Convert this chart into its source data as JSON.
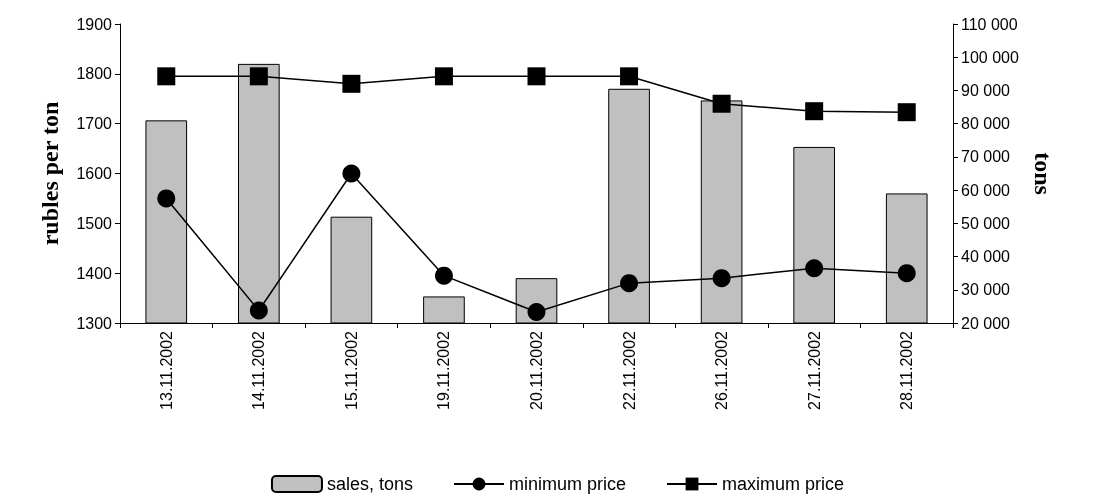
{
  "chart_data": {
    "type": "bar",
    "ylabel": "rubles per ton",
    "y2label": "tons",
    "categories": [
      "13.11.2002",
      "14.11.2002",
      "15.11.2002",
      "19.11.2002",
      "20.11.2002",
      "22.11.2002",
      "26.11.2002",
      "27.11.2002",
      "28.11.2002"
    ],
    "series": [
      {
        "name": "sales, tons",
        "axis": "y2",
        "color": "#c0c0c0",
        "values": [
          81000,
          98000,
          52000,
          28000,
          33500,
          90500,
          87000,
          73000,
          59000
        ]
      },
      {
        "name": "minimum price",
        "type": "line",
        "axis": "y",
        "color": "#000000",
        "marker": "circle",
        "values": [
          1550,
          1325,
          1600,
          1395,
          1322,
          1380,
          1390,
          1410,
          1400
        ]
      },
      {
        "name": "maximum price",
        "type": "line",
        "axis": "y",
        "color": "#000000",
        "marker": "square",
        "values": [
          1795,
          1795,
          1780,
          1795,
          1795,
          1795,
          1740,
          1725,
          1723
        ]
      }
    ],
    "ylim": [
      1300,
      1900
    ],
    "yticks": [
      1300,
      1400,
      1500,
      1600,
      1700,
      1800,
      1900
    ],
    "y2lim": [
      20000,
      110000
    ],
    "y2ticks": [
      {
        "value": 20000,
        "label": "20 000"
      },
      {
        "value": 30000,
        "label": "30 000"
      },
      {
        "value": 40000,
        "label": "40 000"
      },
      {
        "value": 50000,
        "label": "50 000"
      },
      {
        "value": 60000,
        "label": "60 000"
      },
      {
        "value": 70000,
        "label": "70 000"
      },
      {
        "value": 80000,
        "label": "80 000"
      },
      {
        "value": 90000,
        "label": "90 000"
      },
      {
        "value": 100000,
        "label": "100 000"
      },
      {
        "value": 110000,
        "label": "110 000"
      }
    ],
    "grid": false,
    "legend": "bottom"
  }
}
